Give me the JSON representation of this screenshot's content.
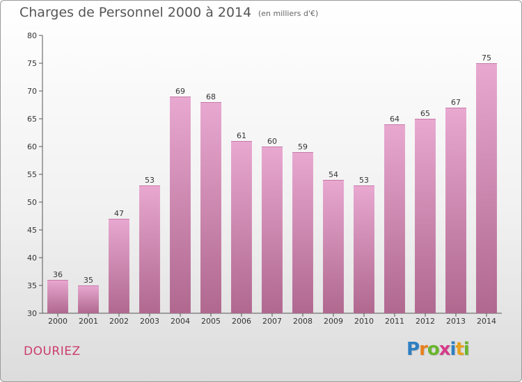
{
  "header": {
    "title": "Charges de Personnel 2000 à 2014",
    "subtitle": "(en milliers d'€)"
  },
  "footer": {
    "commune": "DOURIEZ",
    "logo_letters": [
      "P",
      "r",
      "o",
      "x",
      "i",
      "t",
      "i"
    ],
    "logo_colors": [
      "#2e7fc2",
      "#e8801e",
      "#6ab52e",
      "#d63a8a",
      "#2e7fc2",
      "#e8a21e",
      "#6ab52e"
    ]
  },
  "chart_data": {
    "type": "bar",
    "categories": [
      "2000",
      "2001",
      "2002",
      "2003",
      "2004",
      "2005",
      "2006",
      "2007",
      "2008",
      "2009",
      "2010",
      "2011",
      "2012",
      "2013",
      "2014"
    ],
    "values": [
      36,
      35,
      47,
      53,
      69,
      68,
      61,
      60,
      59,
      54,
      53,
      64,
      65,
      67,
      75
    ],
    "ylim": [
      30,
      80
    ],
    "yticks": [
      30,
      35,
      40,
      45,
      50,
      55,
      60,
      65,
      70,
      75,
      80
    ],
    "grid": false,
    "bar_color_top": "#e8a8d0",
    "bar_color_bottom": "#b0688f",
    "title": "Charges de Personnel 2000 à 2014",
    "xlabel": "",
    "ylabel": ""
  }
}
